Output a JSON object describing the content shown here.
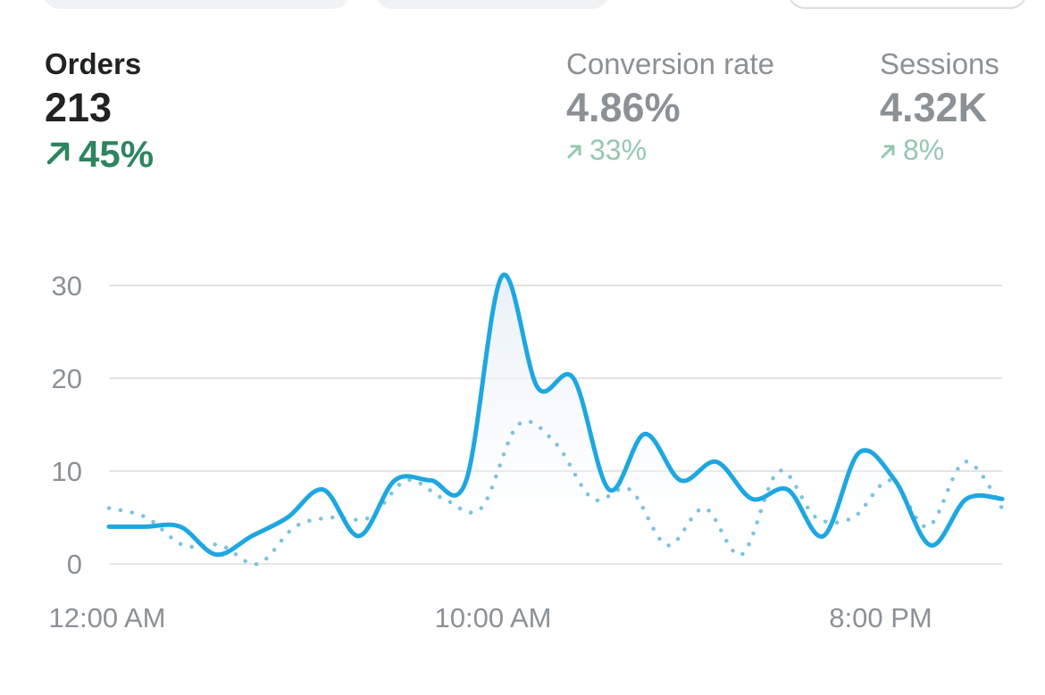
{
  "metrics": [
    {
      "label": "Orders",
      "value": "213",
      "change": "45%",
      "direction": "up",
      "selected": true
    },
    {
      "label": "Conversion rate",
      "value": "4.86%",
      "change": "33%",
      "direction": "up",
      "selected": false
    },
    {
      "label": "Sessions",
      "value": "4.32K",
      "change": "8%",
      "direction": "up",
      "selected": false
    }
  ],
  "colors": {
    "primary_line": "#1ea7e1",
    "comparison_line": "#7cc3e0",
    "positive_strong": "#2e8560",
    "positive_muted": "#93c8b0",
    "text": "#202223",
    "muted_text": "#8c9196",
    "grid": "#e1e3e5"
  },
  "chart_data": {
    "type": "line",
    "x_tick_labels": [
      "12:00 AM",
      "10:00 AM",
      "8:00 PM"
    ],
    "y_tick_labels": [
      "0",
      "10",
      "20",
      "30"
    ],
    "ylim": [
      0,
      30
    ],
    "grid": true,
    "series": [
      {
        "style": "solid",
        "values": [
          4,
          4,
          4,
          1,
          3,
          5,
          8,
          3,
          9,
          9,
          9,
          31,
          19,
          20,
          8,
          14,
          9,
          11,
          7,
          8,
          3,
          12,
          9,
          2,
          7,
          7
        ]
      },
      {
        "style": "dotted",
        "values": [
          6,
          5,
          2,
          2,
          0,
          4,
          5,
          5,
          9,
          7,
          6,
          15,
          13,
          7,
          8,
          2,
          6,
          1,
          10,
          5,
          5,
          9,
          4,
          11,
          6
        ]
      }
    ]
  }
}
